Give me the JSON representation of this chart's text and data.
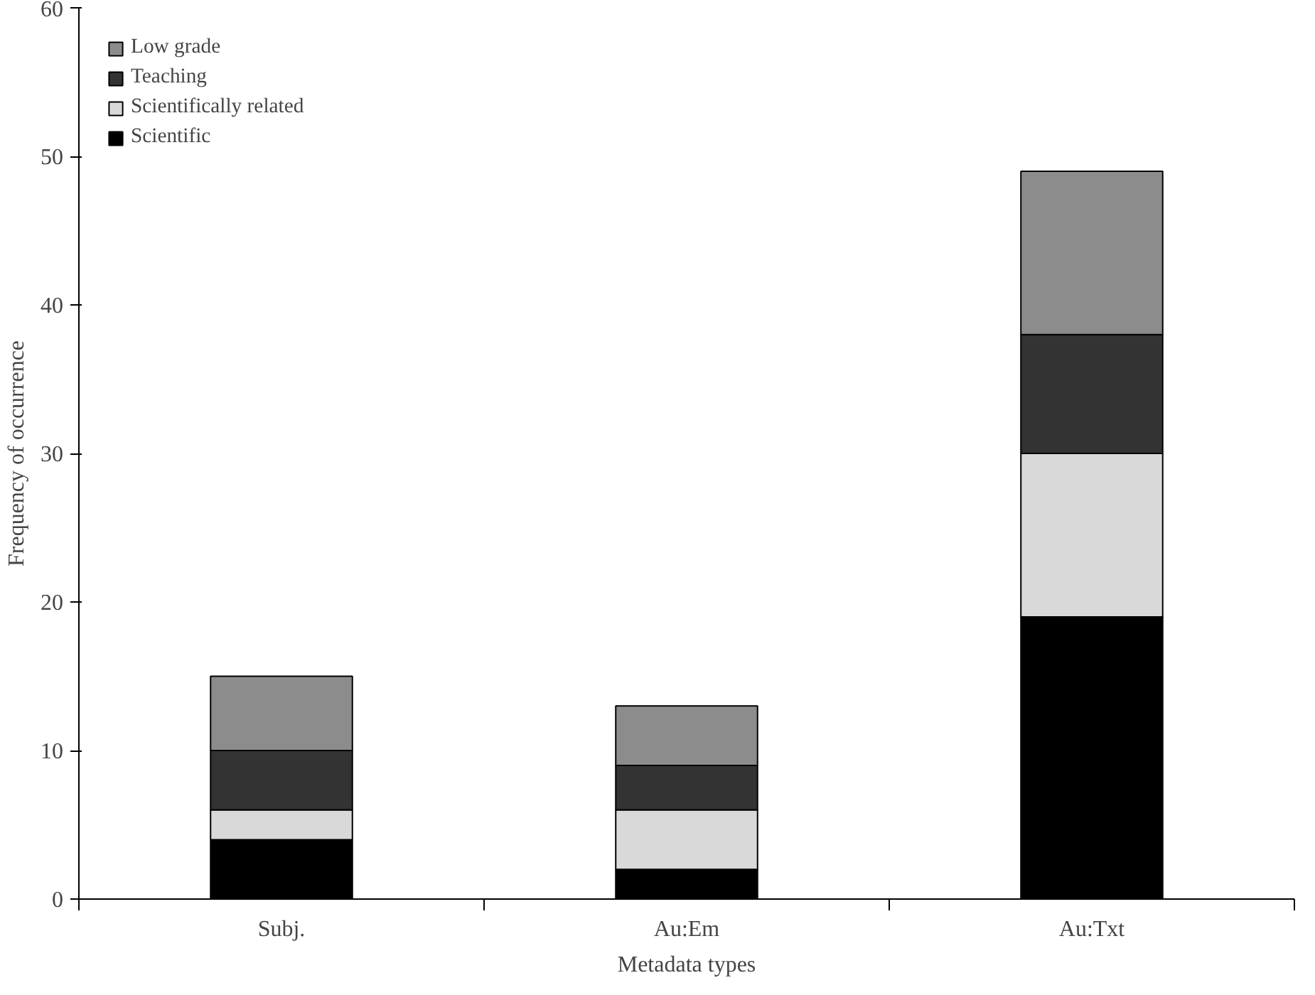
{
  "chart_data": {
    "type": "bar",
    "stacked": true,
    "xlabel": "Metadata types",
    "ylabel": "Frequency of occurrence",
    "categories": [
      "Subj.",
      "Au:Em",
      "Au:Txt"
    ],
    "series": [
      {
        "name": "Scientific",
        "color": "#000000",
        "values": [
          4,
          2,
          19
        ]
      },
      {
        "name": "Scientifically related",
        "color": "#d9d9d9",
        "values": [
          2,
          4,
          11
        ]
      },
      {
        "name": "Teaching",
        "color": "#333333",
        "values": [
          4,
          3,
          8
        ]
      },
      {
        "name": "Low grade",
        "color": "#8c8c8c",
        "values": [
          5,
          4,
          11
        ]
      }
    ],
    "ylim": [
      0,
      60
    ],
    "yticks": [
      0,
      10,
      20,
      30,
      40,
      50,
      60
    ],
    "legend": "top left",
    "grid": false
  }
}
